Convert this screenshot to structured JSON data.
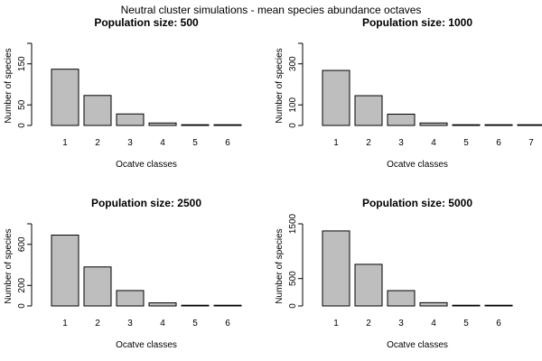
{
  "figure": {
    "title": "Neutral cluster simulations - mean species abundance octaves"
  },
  "colors": {
    "bar_fill": "#bebebe",
    "bar_stroke": "#000000",
    "background": "#ffffff"
  },
  "chart_data": [
    {
      "type": "bar",
      "title": "Population size: 500",
      "xlabel": "Ocatve classes",
      "ylabel": "Number of species",
      "categories": [
        "1",
        "2",
        "3",
        "4",
        "5",
        "6"
      ],
      "values": [
        137,
        73,
        28,
        6,
        1,
        0.5
      ],
      "ylim": [
        0,
        200
      ],
      "yticks": [
        0,
        50,
        150
      ],
      "grid": false
    },
    {
      "type": "bar",
      "title": "Population size: 1000",
      "xlabel": "Ocatve classes",
      "ylabel": "Number of species",
      "categories": [
        "1",
        "2",
        "3",
        "4",
        "5",
        "6",
        "7"
      ],
      "values": [
        268,
        145,
        55,
        12,
        2,
        1,
        0.5
      ],
      "ylim": [
        0,
        400
      ],
      "yticks": [
        0,
        100,
        300
      ],
      "grid": false
    },
    {
      "type": "bar",
      "title": "Population size: 2500",
      "xlabel": "Ocatve classes",
      "ylabel": "Number of species",
      "categories": [
        "1",
        "2",
        "3",
        "4",
        "5",
        "6"
      ],
      "values": [
        690,
        380,
        150,
        30,
        5,
        2
      ],
      "ylim": [
        0,
        800
      ],
      "yticks": [
        0,
        200,
        600
      ],
      "grid": false
    },
    {
      "type": "bar",
      "title": "Population size: 5000",
      "xlabel": "Ocatve classes",
      "ylabel": "Number of species",
      "categories": [
        "1",
        "2",
        "3",
        "4",
        "5",
        "6"
      ],
      "values": [
        1370,
        760,
        280,
        60,
        10,
        3
      ],
      "ylim": [
        0,
        1500
      ],
      "yticks": [
        0,
        500,
        1500
      ],
      "grid": false
    }
  ]
}
